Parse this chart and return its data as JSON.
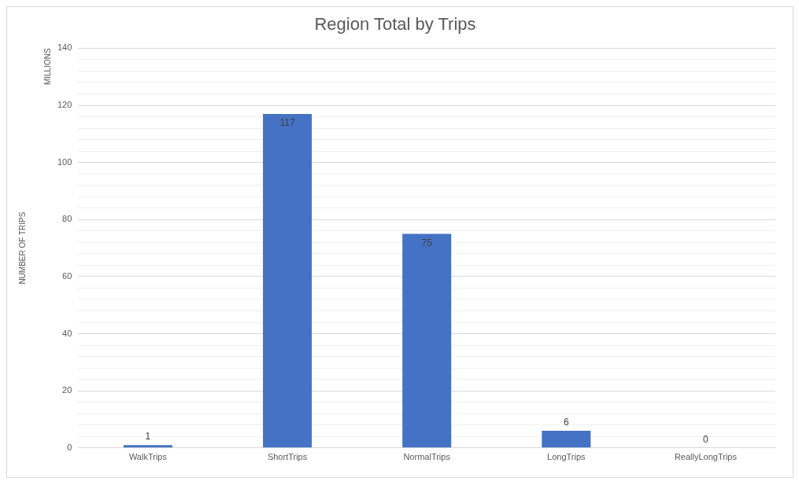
{
  "chart_data": {
    "type": "bar",
    "title": "Region Total by Trips",
    "ylabel": "NUMBER OF TRIPS",
    "annotations": [
      "MILLIONS"
    ],
    "categories": [
      "WalkTrips",
      "ShortTrips",
      "NormalTrips",
      "LongTrips",
      "ReallyLongTrips"
    ],
    "values": [
      1,
      117,
      75,
      6,
      0
    ],
    "color": "#4472c4",
    "data_labels": true,
    "ylim": [
      0,
      140
    ],
    "yticks": [
      0,
      {
        "value": 4,
        "label": null
      },
      {
        "value": 8,
        "label": null
      },
      {
        "value": 12,
        "label": null
      },
      {
        "value": 16,
        "label": null
      },
      20,
      {
        "value": 24,
        "label": null
      },
      {
        "value": 28,
        "label": null
      },
      {
        "value": 32,
        "label": null
      },
      {
        "value": 36,
        "label": null
      },
      40,
      {
        "value": 44,
        "label": null
      },
      {
        "value": 48,
        "label": null
      },
      {
        "value": 52,
        "label": null
      },
      {
        "value": 56,
        "label": null
      },
      60,
      {
        "value": 64,
        "label": null
      },
      {
        "value": 68,
        "label": null
      },
      {
        "value": 72,
        "label": null
      },
      {
        "value": 76,
        "label": null
      },
      80,
      {
        "value": 84,
        "label": null
      },
      {
        "value": 88,
        "label": null
      },
      {
        "value": 92,
        "label": null
      },
      {
        "value": 96,
        "label": null
      },
      100,
      {
        "value": 104,
        "label": null
      },
      {
        "value": 108,
        "label": null
      },
      {
        "value": 112,
        "label": null
      },
      {
        "value": 116,
        "label": null
      },
      120,
      {
        "value": 124,
        "label": null
      },
      {
        "value": 128,
        "label": null
      },
      {
        "value": 132,
        "label": null
      },
      {
        "value": 136,
        "label": null
      },
      140
    ],
    "grid": "y",
    "legend": false
  }
}
